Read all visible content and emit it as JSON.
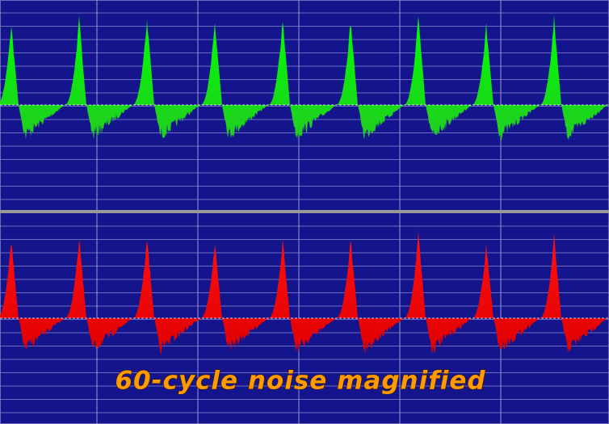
{
  "caption": "60-cycle noise magnified"
}
